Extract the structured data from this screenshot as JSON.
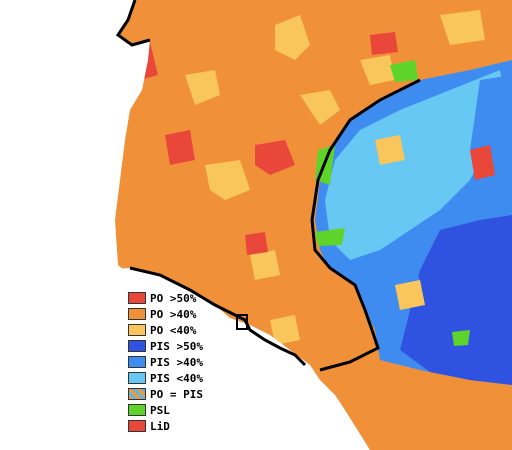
{
  "legend": {
    "items": [
      {
        "label": "PO >50%",
        "color": "#e8473a",
        "name": "po-over-50"
      },
      {
        "label": "PO >40%",
        "color": "#f0913a",
        "name": "po-over-40"
      },
      {
        "label": "PO <40%",
        "color": "#f9c65b",
        "name": "po-under-40"
      },
      {
        "label": "PIS >50%",
        "color": "#2f53e0",
        "name": "pis-over-50"
      },
      {
        "label": "PIS >40%",
        "color": "#3f8cf0",
        "name": "pis-over-40"
      },
      {
        "label": "PIS <40%",
        "color": "#67c8f4",
        "name": "pis-under-40"
      },
      {
        "label": "PO = PIS",
        "color": "#e8a050",
        "name": "po-equals-pis",
        "hatched": true
      },
      {
        "label": "PSL",
        "color": "#5ed42a",
        "name": "psl"
      },
      {
        "label": "LiD",
        "color": "#e8473a",
        "name": "lid"
      }
    ]
  },
  "colors": {
    "po_strong": "#e8473a",
    "po_mid": "#f0913a",
    "po_weak": "#f9c65b",
    "pis_strong": "#2f53e0",
    "pis_mid": "#3f8cf0",
    "pis_weak": "#67c8f4",
    "psl": "#5ed42a",
    "border": "#000000",
    "outside": "#ffffff"
  }
}
